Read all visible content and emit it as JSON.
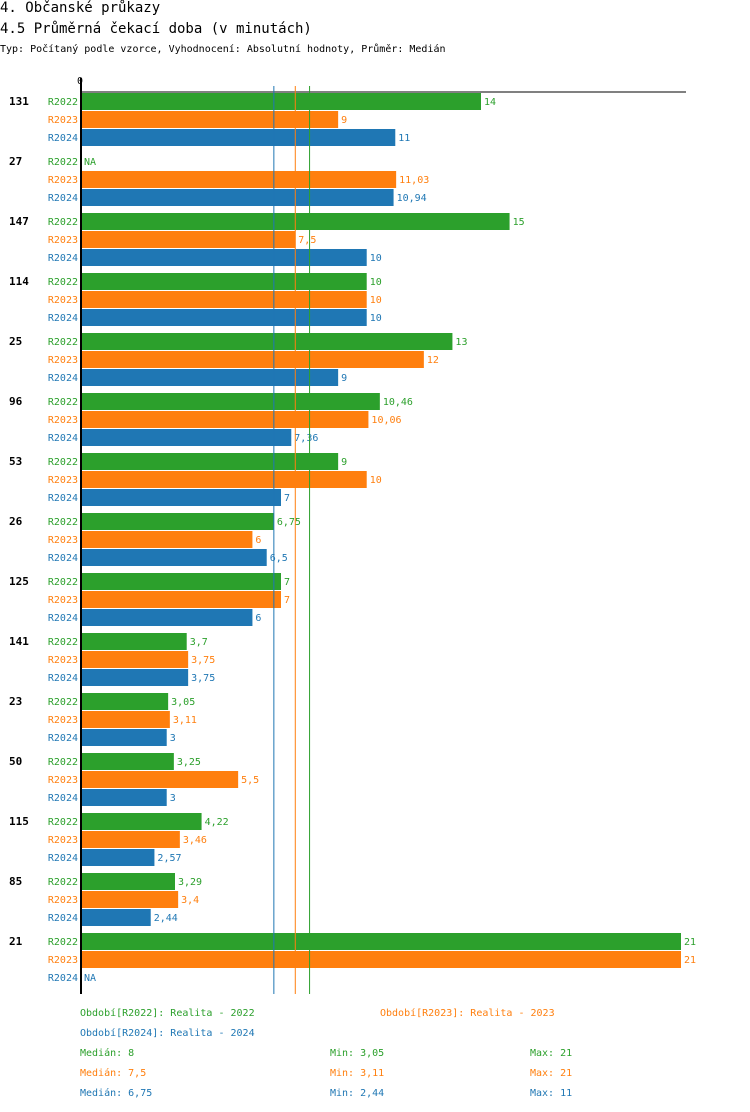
{
  "header": {
    "section": "4. Občanské průkazy",
    "title": "4.5 Průměrná čekací doba (v minutách)",
    "subtitle": "Typ: Počítaný podle vzorce, Vyhodnocení: Absolutní hodnoty, Průměr: Medián"
  },
  "chart_data": {
    "type": "bar",
    "orientation": "horizontal",
    "title": "4.5 Průměrná čekací doba (v minutách)",
    "axis_min_label": "0",
    "xlim": [
      0,
      21
    ],
    "categories": [
      "131",
      "27",
      "147",
      "114",
      "25",
      "96",
      "53",
      "26",
      "125",
      "141",
      "23",
      "50",
      "115",
      "85",
      "21"
    ],
    "series": [
      {
        "name": "R2022",
        "color": "#2ca02c",
        "values": [
          14,
          null,
          15,
          10,
          13,
          10.46,
          9,
          6.75,
          7,
          3.7,
          3.05,
          3.25,
          4.22,
          3.29,
          21
        ],
        "labels": [
          "14",
          "NA",
          "15",
          "10",
          "13",
          "10,46",
          "9",
          "6,75",
          "7",
          "3,7",
          "3,05",
          "3,25",
          "4,22",
          "3,29",
          "21"
        ]
      },
      {
        "name": "R2023",
        "color": "#ff7f0e",
        "values": [
          9,
          11.03,
          7.5,
          10,
          12,
          10.06,
          10,
          6,
          7,
          3.75,
          3.11,
          5.5,
          3.46,
          3.4,
          21
        ],
        "labels": [
          "9",
          "11,03",
          "7,5",
          "10",
          "12",
          "10,06",
          "10",
          "6",
          "7",
          "3,75",
          "3,11",
          "5,5",
          "3,46",
          "3,4",
          "21"
        ]
      },
      {
        "name": "R2024",
        "color": "#1f77b4",
        "values": [
          11,
          10.94,
          10,
          10,
          9,
          7.36,
          7,
          6.5,
          6,
          3.75,
          3,
          3,
          2.57,
          2.44,
          null
        ],
        "labels": [
          "11",
          "10,94",
          "10",
          "10",
          "9",
          "7,36",
          "7",
          "6,5",
          "6",
          "3,75",
          "3",
          "3",
          "2,57",
          "2,44",
          "NA"
        ]
      }
    ],
    "reference_lines": [
      {
        "series": "R2024",
        "value": 6.75
      },
      {
        "series": "R2023",
        "value": 7.5
      },
      {
        "series": "R2022",
        "value": 8
      }
    ]
  },
  "legend": {
    "r2022": "Období[R2022]: Realita - 2022",
    "r2023": "Období[R2023]: Realita - 2023",
    "r2024": "Období[R2024]: Realita - 2024"
  },
  "stats": [
    {
      "median": "Medián: 8",
      "min": "Min: 3,05",
      "max": "Max: 21"
    },
    {
      "median": "Medián: 7,5",
      "min": "Min: 3,11",
      "max": "Max: 21"
    },
    {
      "median": "Medián: 6,75",
      "min": "Min: 2,44",
      "max": "Max: 11"
    }
  ],
  "colors": {
    "r2022": "#2ca02c",
    "r2023": "#ff7f0e",
    "r2024": "#1f77b4"
  }
}
